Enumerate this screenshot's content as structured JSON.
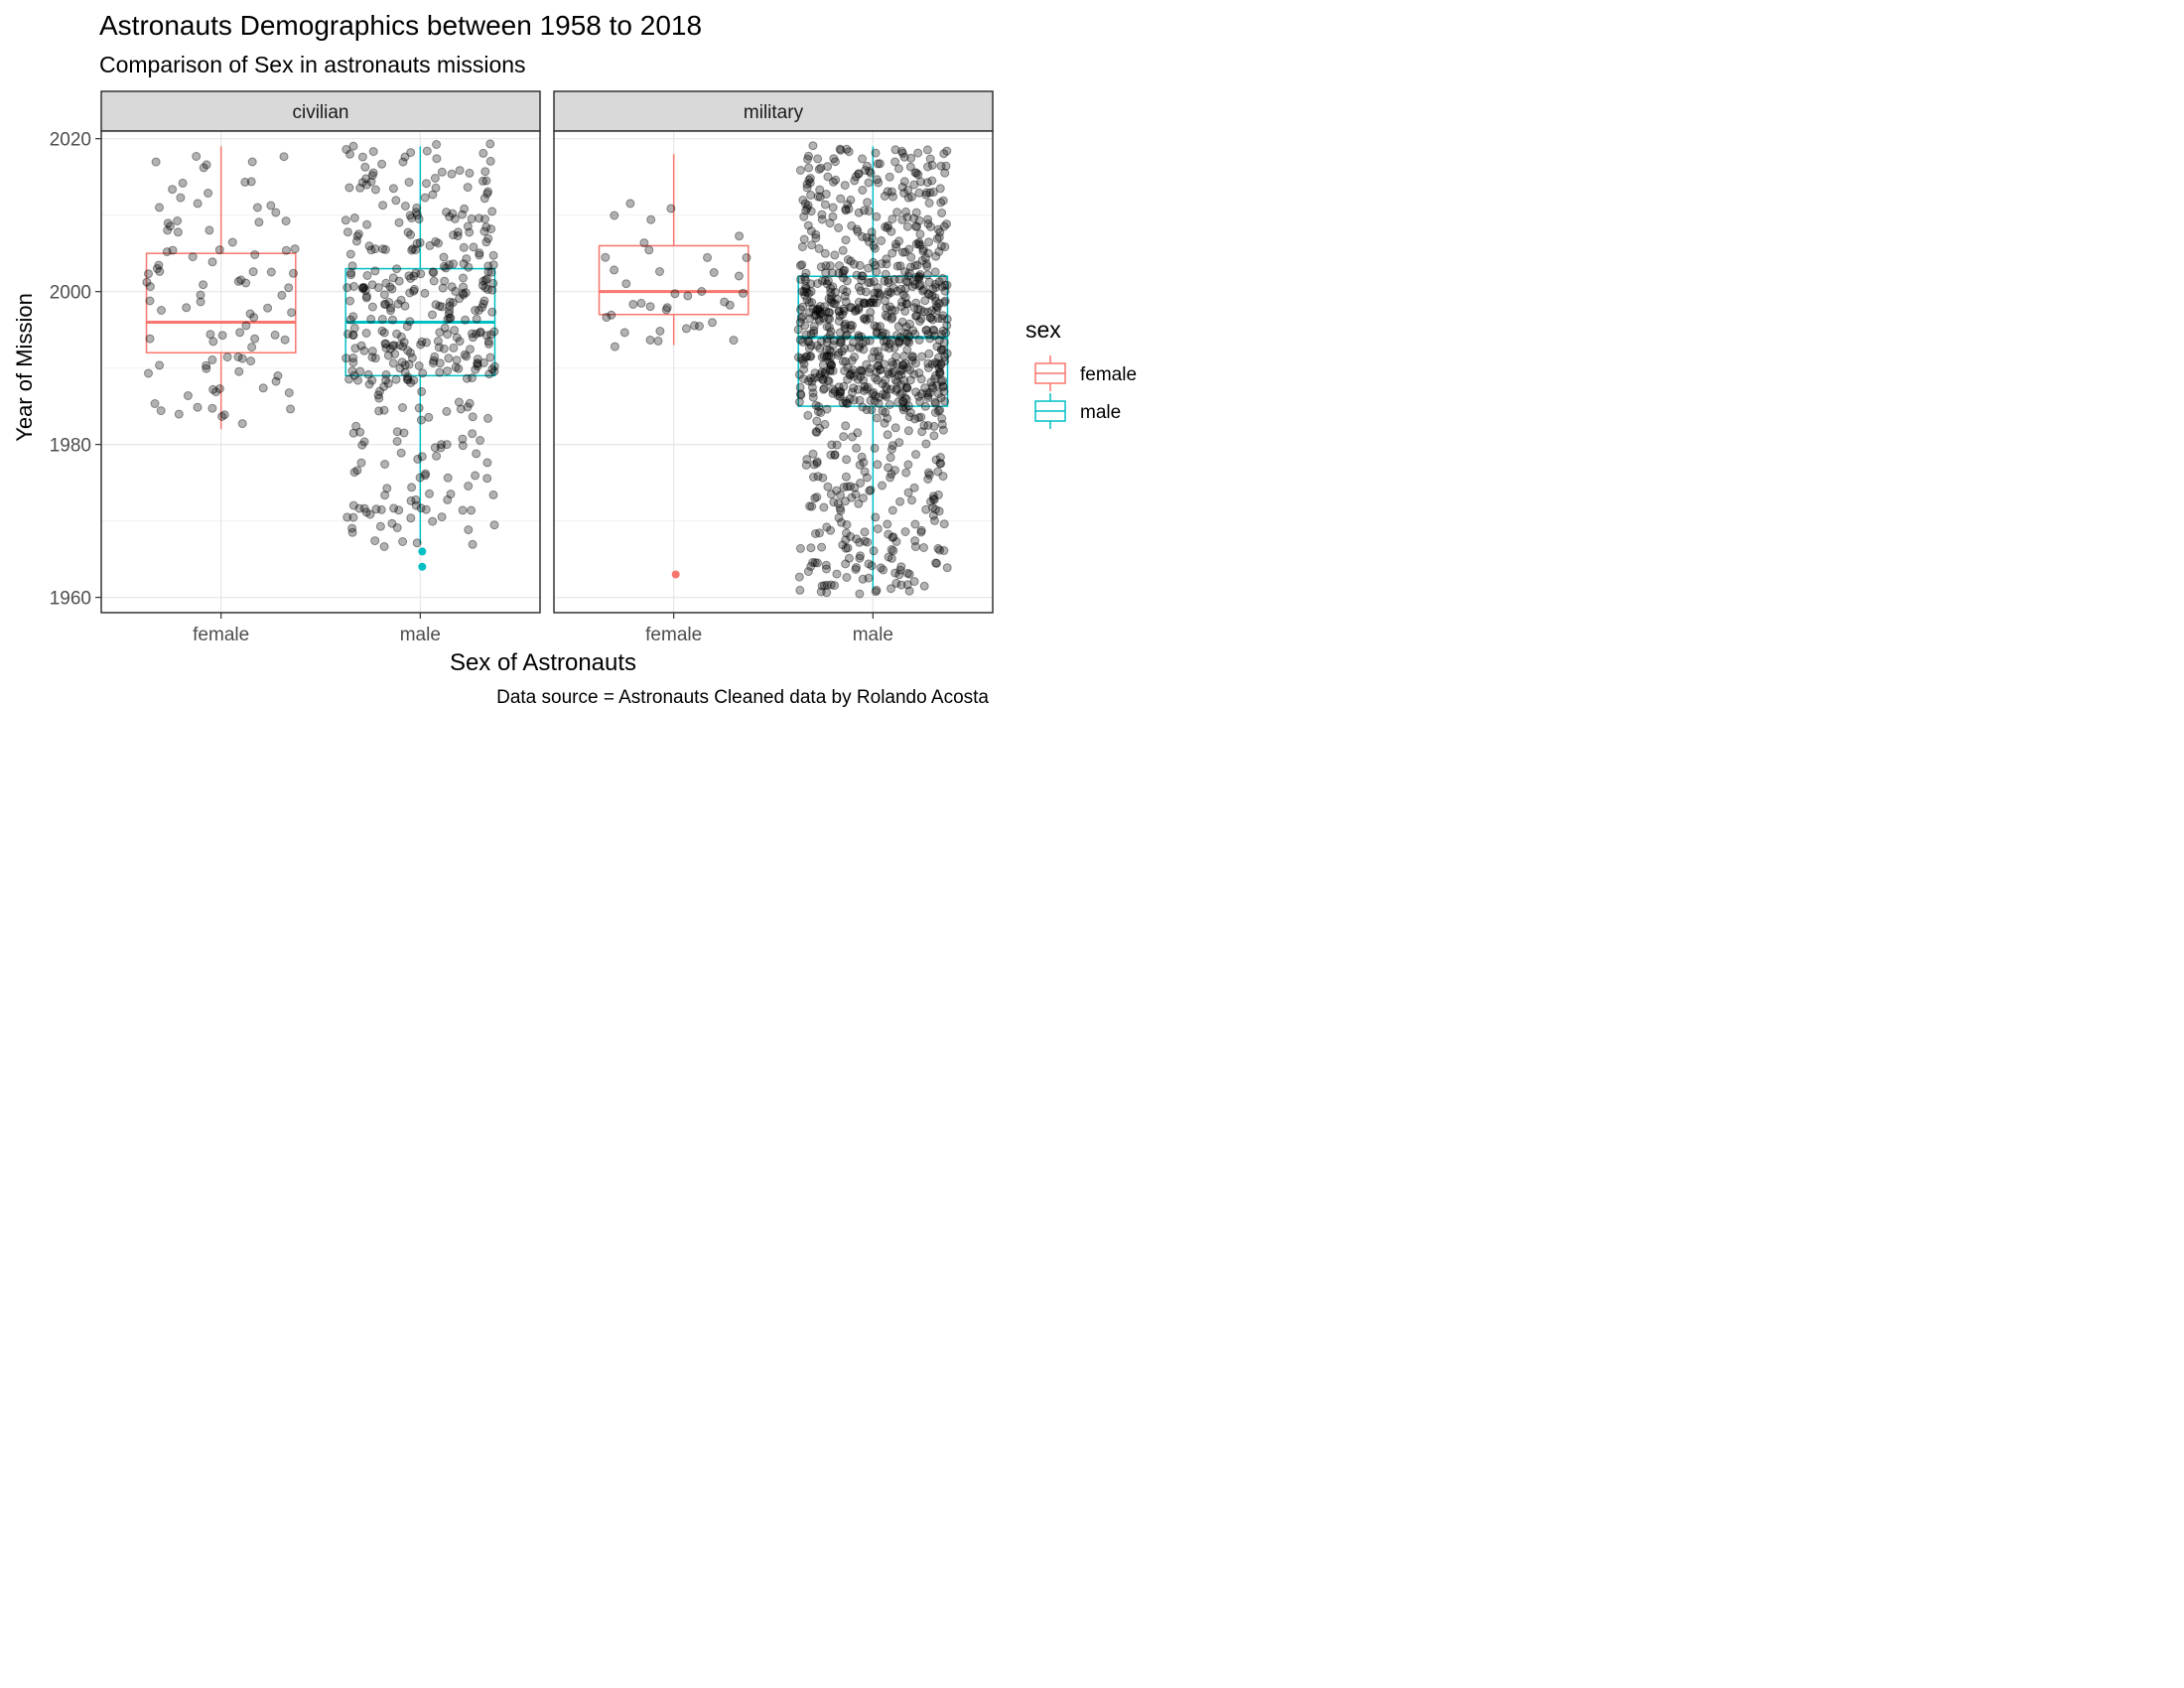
{
  "chart_data": {
    "type": "boxplot",
    "title": "Astronauts Demographics between 1958 to 2018",
    "subtitle": "Comparison of Sex in astronauts missions",
    "xlabel": "Sex of Astronauts",
    "ylabel": "Year of Mission",
    "caption": "Data source = Astronauts Cleaned data by Rolando Acosta",
    "ylim": [
      1958,
      2021
    ],
    "y_ticks": [
      1960,
      1980,
      2000,
      2020
    ],
    "grid": true,
    "categories": [
      "female",
      "male"
    ],
    "legend": {
      "title": "sex",
      "placement": "right",
      "entries": [
        {
          "name": "female",
          "color": "#F8766D"
        },
        {
          "name": "male",
          "color": "#00BFC4"
        }
      ]
    },
    "point_color": "#000000",
    "point_alpha": 0.4,
    "panels": [
      {
        "name": "civilian",
        "boxes": [
          {
            "category": "female",
            "color": "#F8766D",
            "whisker_low": 1982,
            "q1": 1992,
            "median": 1996,
            "q3": 2005,
            "whisker_high": 2019,
            "outliers": [],
            "n_points": 95
          },
          {
            "category": "male",
            "color": "#00BFC4",
            "whisker_low": 1967,
            "q1": 1989,
            "median": 1996,
            "q3": 2003,
            "whisker_high": 2019,
            "outliers": [
              1964,
              1966
            ],
            "n_points": 400
          }
        ]
      },
      {
        "name": "military",
        "boxes": [
          {
            "category": "female",
            "color": "#F8766D",
            "whisker_low": 1993,
            "q1": 1997,
            "median": 2000,
            "q3": 2006,
            "whisker_high": 2018,
            "outliers": [
              1963
            ],
            "n_points": 38
          },
          {
            "category": "male",
            "color": "#00BFC4",
            "whisker_low": 1961,
            "q1": 1985,
            "median": 1994,
            "q3": 2002,
            "whisker_high": 2019,
            "outliers": [],
            "n_points": 950
          }
        ]
      }
    ]
  }
}
